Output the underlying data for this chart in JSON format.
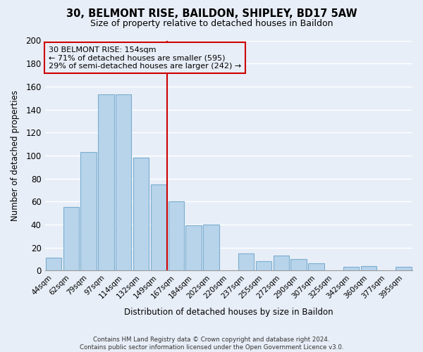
{
  "title": "30, BELMONT RISE, BAILDON, SHIPLEY, BD17 5AW",
  "subtitle": "Size of property relative to detached houses in Baildon",
  "xlabel": "Distribution of detached houses by size in Baildon",
  "ylabel": "Number of detached properties",
  "footer_line1": "Contains HM Land Registry data © Crown copyright and database right 2024.",
  "footer_line2": "Contains public sector information licensed under the Open Government Licence v3.0.",
  "bar_labels": [
    "44sqm",
    "62sqm",
    "79sqm",
    "97sqm",
    "114sqm",
    "132sqm",
    "149sqm",
    "167sqm",
    "184sqm",
    "202sqm",
    "220sqm",
    "237sqm",
    "255sqm",
    "272sqm",
    "290sqm",
    "307sqm",
    "325sqm",
    "342sqm",
    "360sqm",
    "377sqm",
    "395sqm"
  ],
  "bar_values": [
    11,
    55,
    103,
    153,
    153,
    98,
    75,
    60,
    39,
    40,
    0,
    15,
    8,
    13,
    10,
    6,
    0,
    3,
    4,
    0,
    3
  ],
  "bar_color": "#b8d4ea",
  "bar_edge_color": "#7aaed0",
  "property_line_x": 6.5,
  "annotation_line1": "30 BELMONT RISE: 154sqm",
  "annotation_line2": "← 71% of detached houses are smaller (595)",
  "annotation_line3": "29% of semi-detached houses are larger (242) →",
  "vline_color": "#cc0000",
  "annotation_box_edgecolor": "#cc0000",
  "background_color": "#e8eef7",
  "plot_bg_color": "#e8eef7",
  "grid_color": "#ffffff",
  "ylim": [
    0,
    200
  ],
  "yticks": [
    0,
    20,
    40,
    60,
    80,
    100,
    120,
    140,
    160,
    180,
    200
  ]
}
